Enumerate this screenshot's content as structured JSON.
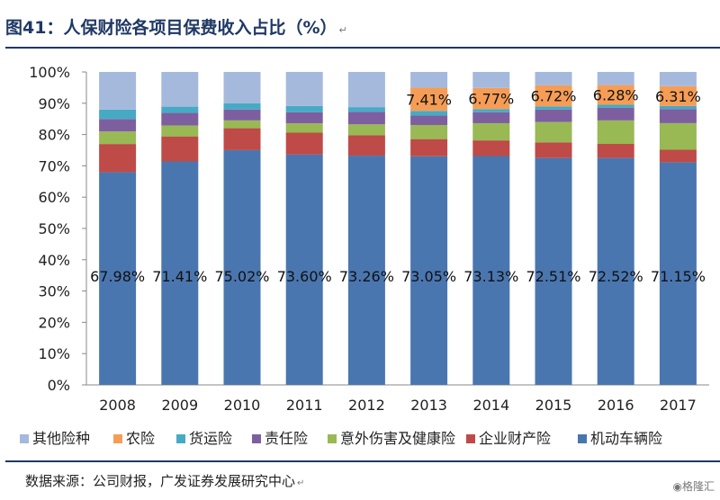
{
  "title": "图41：人保财险各项目保费收入占比（%）",
  "title_mark": "↵",
  "source": "数据来源：公司财报，广发证券发展研究中心",
  "source_mark": "↵",
  "watermark": "格隆汇",
  "watermark_icon": "ghh-logo-icon",
  "chart_data": {
    "type": "bar",
    "stacked": true,
    "categories": [
      "2008",
      "2009",
      "2010",
      "2011",
      "2012",
      "2013",
      "2014",
      "2015",
      "2016",
      "2017"
    ],
    "ylim": [
      0,
      100
    ],
    "yticks": [
      "0%",
      "10%",
      "20%",
      "30%",
      "40%",
      "50%",
      "60%",
      "70%",
      "80%",
      "90%",
      "100%"
    ],
    "legend_position": "bottom",
    "series": [
      {
        "name": "机动车辆险",
        "color": "#4a76b0",
        "values": [
          67.98,
          71.41,
          75.02,
          73.6,
          73.26,
          73.05,
          73.13,
          72.51,
          72.52,
          71.15
        ],
        "labels": [
          "67.98%",
          "71.41%",
          "75.02%",
          "73.60%",
          "73.26%",
          "73.05%",
          "73.13%",
          "72.51%",
          "72.52%",
          "71.15%"
        ]
      },
      {
        "name": "企业财产险",
        "color": "#be4b48",
        "values": [
          9.0,
          8.0,
          7.0,
          7.0,
          6.5,
          5.5,
          5.0,
          5.0,
          4.5,
          4.0
        ]
      },
      {
        "name": "意外伤害及健康险",
        "color": "#98b954",
        "values": [
          4.0,
          3.5,
          2.5,
          3.0,
          3.5,
          4.5,
          5.5,
          6.5,
          7.5,
          8.5
        ]
      },
      {
        "name": "责任险",
        "color": "#7d5fa0",
        "values": [
          4.0,
          4.0,
          3.5,
          3.5,
          4.0,
          3.0,
          3.5,
          4.0,
          4.0,
          4.5
        ]
      },
      {
        "name": "货运险",
        "color": "#46aac5",
        "values": [
          3.0,
          2.0,
          2.0,
          2.0,
          1.5,
          1.5,
          1.0,
          1.0,
          1.0,
          1.0
        ]
      },
      {
        "name": "农险",
        "color": "#f59d56",
        "values": [
          0,
          0,
          0,
          0,
          0,
          7.41,
          6.77,
          6.72,
          6.28,
          6.31
        ],
        "labels": [
          "",
          "",
          "",
          "",
          "",
          "7.41%",
          "6.77%",
          "6.72%",
          "6.28%",
          "6.31%"
        ]
      },
      {
        "name": "其他险种",
        "color": "#a5b9dc",
        "values": [
          12.02,
          11.09,
          9.98,
          10.9,
          11.24,
          5.04,
          5.1,
          4.27,
          4.2,
          4.54
        ]
      }
    ],
    "legend_order": [
      "其他险种",
      "农险",
      "货运险",
      "责任险",
      "意外伤害及健康险",
      "企业财产险",
      "机动车辆险"
    ]
  }
}
